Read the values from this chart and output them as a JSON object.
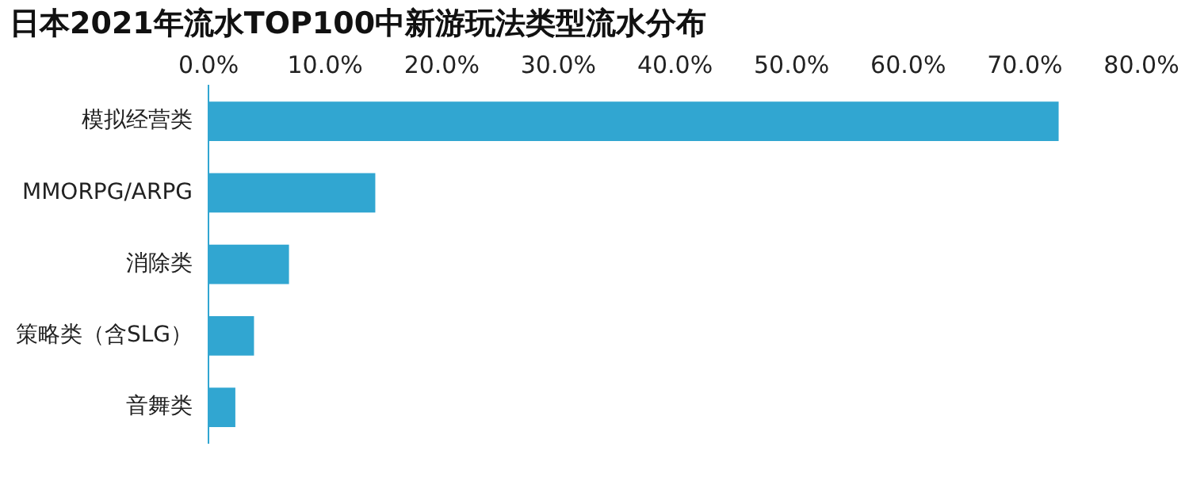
{
  "chart_data": {
    "type": "bar",
    "title": "日本2021年流水TOP100中新游玩法类型流水分布",
    "orientation": "horizontal",
    "categories": [
      "模拟经营类",
      "MMORPG/ARPG",
      "消除类",
      "策略类（含SLG）",
      "音舞类"
    ],
    "values": [
      72.9,
      14.3,
      6.9,
      3.9,
      2.3
    ],
    "color": "#31a6d1",
    "xlim": [
      0,
      80
    ],
    "xticks": [
      {
        "value": 0,
        "label": "0.0%"
      },
      {
        "value": 10,
        "label": "10.0%"
      },
      {
        "value": 20,
        "label": "20.0%"
      },
      {
        "value": 30,
        "label": "30.0%"
      },
      {
        "value": 40,
        "label": "40.0%"
      },
      {
        "value": 50,
        "label": "50.0%"
      },
      {
        "value": 60,
        "label": "60.0%"
      },
      {
        "value": 70,
        "label": "70.0%"
      },
      {
        "value": 80,
        "label": "80.0%"
      }
    ],
    "grid": false,
    "legend": false
  }
}
